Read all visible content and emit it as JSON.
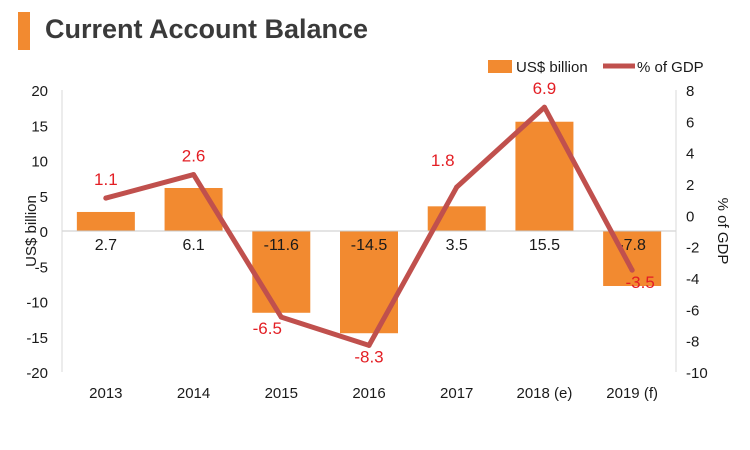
{
  "title": "Current Account Balance",
  "chart_data": {
    "type": "bar",
    "categories": [
      "2013",
      "2014",
      "2015",
      "2016",
      "2017",
      "2018 (e)",
      "2019 (f)"
    ],
    "series": [
      {
        "name": "US$ billion",
        "type": "bar",
        "axis": "left",
        "color": "#f28a30",
        "values": [
          2.7,
          6.1,
          -11.6,
          -14.5,
          3.5,
          15.5,
          -7.8
        ],
        "labels": [
          "2.7",
          "6.1",
          "-11.6",
          "-14.5",
          "3.5",
          "15.5",
          "-7.8"
        ]
      },
      {
        "name": "% of GDP",
        "type": "line",
        "axis": "right",
        "color": "#c0504d",
        "label_color": "#e31e24",
        "values": [
          1.1,
          2.6,
          -6.5,
          -8.3,
          1.8,
          6.9,
          -3.5
        ],
        "labels": [
          "1.1",
          "2.6",
          "-6.5",
          "-8.3",
          "1.8",
          "6.9",
          "-3.5"
        ]
      }
    ],
    "y_left": {
      "label": "US$ billion",
      "lim": [
        -20,
        20
      ],
      "ticks": [
        20,
        15,
        10,
        5,
        0,
        -5,
        -10,
        -15,
        -20
      ]
    },
    "y_right": {
      "label": "% of GDP",
      "lim": [
        -10,
        8
      ],
      "ticks": [
        8,
        6,
        4,
        2,
        0,
        -2,
        -4,
        -6,
        -8,
        -10
      ]
    },
    "legend_position": "top-right",
    "grid": false
  }
}
